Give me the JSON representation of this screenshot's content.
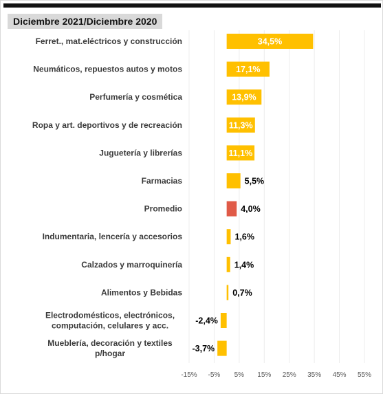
{
  "chart_data": {
    "type": "bar",
    "orientation": "horizontal",
    "title": "Diciembre 2021/Diciembre 2020",
    "categories": [
      [
        "Ferret., mat.eléctricos y construcción"
      ],
      [
        "Neumáticos, repuestos autos y motos"
      ],
      [
        "Perfumería y cosmética"
      ],
      [
        "Ropa y art. deportivos y de recreación"
      ],
      [
        "Juguetería y librerías"
      ],
      [
        "Farmacias"
      ],
      [
        "Promedio"
      ],
      [
        "Indumentaria, lencería y accesorios"
      ],
      [
        "Calzados y marroquinería"
      ],
      [
        "Alimentos y Bebidas"
      ],
      [
        "Electrodomésticos, electrónicos,",
        "computación, celulares y acc."
      ],
      [
        "Mueblería, decoración y textiles",
        "p/hogar"
      ]
    ],
    "values": [
      34.5,
      17.1,
      13.9,
      11.3,
      11.1,
      5.5,
      4.0,
      1.6,
      1.4,
      0.7,
      -2.4,
      -3.7
    ],
    "value_labels": [
      "34,5%",
      "17,1%",
      "13,9%",
      "11,3%",
      "11,1%",
      "5,5%",
      "4,0%",
      "1,6%",
      "1,4%",
      "0,7%",
      "-2,4%",
      "-3,7%"
    ],
    "highlight_category_index": 6,
    "xlim": [
      -15,
      55
    ],
    "xticks": [
      -15,
      -5,
      5,
      15,
      25,
      35,
      45,
      55
    ],
    "xtick_labels": [
      "-15%",
      "-5%",
      "5%",
      "15%",
      "25%",
      "35%",
      "45%",
      "55%"
    ],
    "grid": "vertical",
    "legend": "none",
    "colors": {
      "bar": "#ffc000",
      "highlight": "#e05a47",
      "inside_label": "#ffffff",
      "outside_label": "#000000",
      "grid": "#ececec"
    }
  }
}
